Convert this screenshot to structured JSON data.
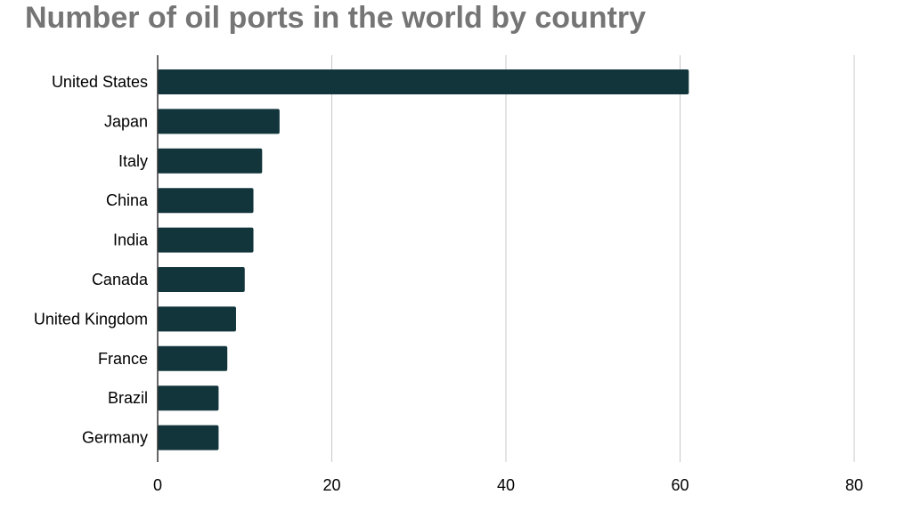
{
  "chart_data": {
    "type": "bar",
    "orientation": "horizontal",
    "title": "Number of oil ports in the world by country",
    "categories": [
      "United States",
      "Japan",
      "Italy",
      "China",
      "India",
      "Canada",
      "United Kingdom",
      "France",
      "Brazil",
      "Germany"
    ],
    "values": [
      61,
      14,
      12,
      11,
      11,
      10,
      9,
      8,
      7,
      7
    ],
    "xlim": [
      0,
      80
    ],
    "xticks": [
      0,
      20,
      40,
      60,
      80
    ],
    "xlabel": "",
    "ylabel": "",
    "grid": "vertical",
    "legend": "none",
    "bar_color": "#12353c"
  }
}
